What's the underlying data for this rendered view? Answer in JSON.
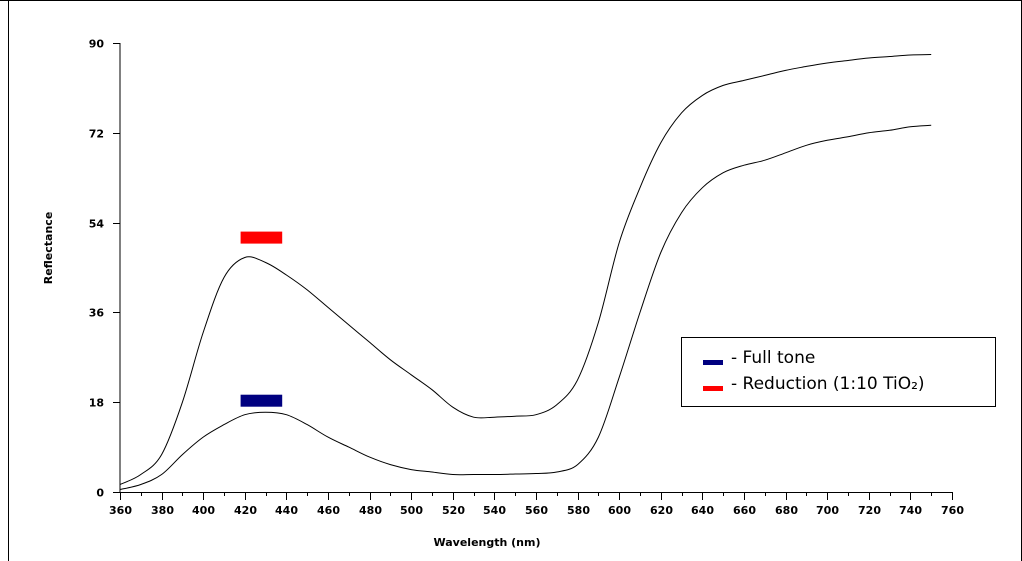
{
  "chart_data": {
    "type": "line",
    "title": "",
    "xlabel": "Wavelength (nm)",
    "ylabel": "Reflectance",
    "xlim": [
      360,
      760
    ],
    "ylim": [
      0,
      90
    ],
    "x_ticks": [
      360,
      380,
      400,
      420,
      440,
      460,
      480,
      500,
      520,
      540,
      560,
      580,
      600,
      620,
      640,
      660,
      680,
      700,
      720,
      740,
      760
    ],
    "y_ticks": [
      0,
      18,
      36,
      54,
      72,
      90
    ],
    "grid": false,
    "legend_position": "right",
    "series": [
      {
        "name": "Full tone",
        "color": "#000080",
        "x": [
          360,
          370,
          380,
          390,
          400,
          410,
          420,
          430,
          440,
          450,
          460,
          470,
          480,
          490,
          500,
          510,
          520,
          530,
          540,
          550,
          560,
          570,
          580,
          590,
          600,
          610,
          620,
          630,
          640,
          650,
          660,
          670,
          680,
          690,
          700,
          710,
          720,
          730,
          740,
          750
        ],
        "y": [
          0.5,
          1.5,
          3.5,
          7.5,
          11,
          13.5,
          15.5,
          16,
          15.5,
          13.5,
          11,
          9,
          7,
          5.5,
          4.5,
          4,
          3.5,
          3.5,
          3.5,
          3.6,
          3.7,
          4,
          5.5,
          11,
          23,
          36,
          48,
          56,
          61,
          64,
          65.5,
          66.5,
          68,
          69.5,
          70.5,
          71.2,
          72,
          72.5,
          73.2,
          73.5
        ]
      },
      {
        "name": "Reduction (1:10 TiO₂)",
        "color": "#ff0000",
        "x": [
          360,
          370,
          380,
          390,
          400,
          410,
          420,
          430,
          440,
          450,
          460,
          470,
          480,
          490,
          500,
          510,
          520,
          530,
          540,
          550,
          560,
          570,
          580,
          590,
          600,
          610,
          620,
          630,
          640,
          650,
          660,
          670,
          680,
          690,
          700,
          710,
          720,
          730,
          740,
          750
        ],
        "y": [
          1.5,
          3.5,
          7.5,
          18,
          32,
          43,
          47,
          46,
          43.5,
          40.5,
          37,
          33.5,
          30,
          26.5,
          23.5,
          20.5,
          17,
          15,
          15,
          15.2,
          15.5,
          17.5,
          22.5,
          34,
          50,
          61,
          70,
          76,
          79.5,
          81.5,
          82.5,
          83.5,
          84.5,
          85.3,
          86,
          86.5,
          87,
          87.3,
          87.6,
          87.7
        ]
      }
    ],
    "markers": [
      {
        "series": "Reduction (1:10 TiO₂)",
        "x_start": 418,
        "x_end": 438,
        "y": 51,
        "color": "#ff0000"
      },
      {
        "series": "Full tone",
        "x_start": 418,
        "x_end": 438,
        "y": 18.3,
        "color": "#000080"
      }
    ]
  },
  "legend": {
    "items": [
      {
        "label": "- Full tone",
        "color": "#000080"
      },
      {
        "label": "- Reduction (1:10 TiO₂)",
        "color": "#ff0000"
      }
    ]
  }
}
